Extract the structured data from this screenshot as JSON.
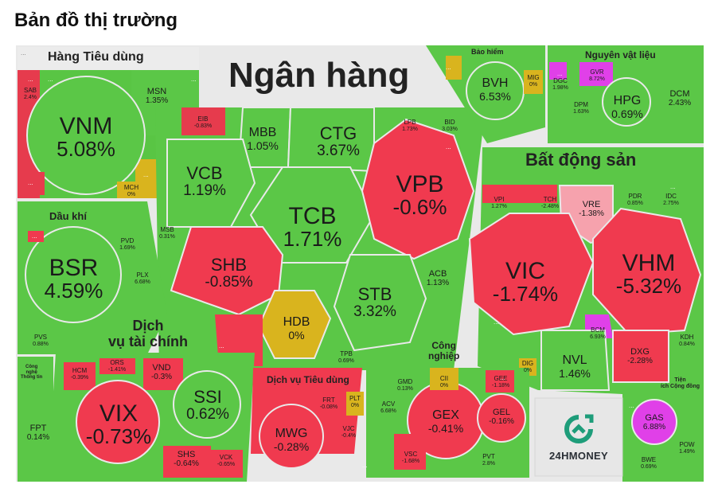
{
  "page": {
    "title": "Bản đồ thị trường"
  },
  "colors": {
    "green": "#5bc747",
    "red": "#f03a4f",
    "yellow": "#d9b41e",
    "magenta": "#e040e8",
    "pink": "#f6a2ad",
    "gray": "#e7e7e7"
  },
  "sectors": {
    "hang_tieu_dung": "Hàng Tiêu dùng",
    "ngan_hang": "Ngân hàng",
    "bao_hiem": "Bảo hiểm",
    "nguyen_vat_lieu": "Nguyên vật liệu",
    "bat_dong_san": "Bất động sản",
    "dau_khi": "Dầu khí",
    "dich_vu_tai_chinh": "Dịch\nvụ tài chính",
    "cong_nghe": "Công\nnghệ\nThông tin",
    "dich_vu_tieu_dung": "Dịch vụ Tiêu dùng",
    "cong_nghiep": "Công\nnghiệp",
    "tien_ich": "Tiện\ních Cộng đồng"
  },
  "tiles": {
    "vnm": {
      "code": "VNM",
      "pct": "5.08%"
    },
    "msn": {
      "code": "MSN",
      "pct": "1.35%"
    },
    "sab": {
      "code": "SAB",
      "pct": "2.4%"
    },
    "mch": {
      "code": "MCH",
      "pct": "0%"
    },
    "eib": {
      "code": "EIB",
      "pct": "-0.83%"
    },
    "mbb": {
      "code": "MBB",
      "pct": "1.05%"
    },
    "ctg": {
      "code": "CTG",
      "pct": "3.67%"
    },
    "lpb": {
      "code": "LPB",
      "pct": "1.73%"
    },
    "bid": {
      "code": "BID",
      "pct": "3.03%"
    },
    "vcb": {
      "code": "VCB",
      "pct": "1.19%"
    },
    "tcb": {
      "code": "TCB",
      "pct": "1.71%"
    },
    "vpb": {
      "code": "VPB",
      "pct": "-0.6%"
    },
    "shb": {
      "code": "SHB",
      "pct": "-0.85%"
    },
    "msb": {
      "code": "MSB",
      "pct": "0.31%"
    },
    "hdb": {
      "code": "HDB",
      "pct": "0%"
    },
    "stb": {
      "code": "STB",
      "pct": "3.32%"
    },
    "acb": {
      "code": "ACB",
      "pct": "1.13%"
    },
    "tpb": {
      "code": "TPB",
      "pct": "0.69%"
    },
    "bvh": {
      "code": "BVH",
      "pct": "6.53%"
    },
    "mig": {
      "code": "MIG",
      "pct": "0%"
    },
    "gvr": {
      "code": "GVR",
      "pct": "8.72%"
    },
    "dgc": {
      "code": "DGC",
      "pct": "1.98%"
    },
    "dpm": {
      "code": "DPM",
      "pct": "1.63%"
    },
    "hpg": {
      "code": "HPG",
      "pct": "0.69%"
    },
    "dcm": {
      "code": "DCM",
      "pct": "2.43%"
    },
    "vpi": {
      "code": "VPI",
      "pct": "1.27%"
    },
    "tch": {
      "code": "TCH",
      "pct": "-2.48%"
    },
    "vre": {
      "code": "VRE",
      "pct": "-1.38%"
    },
    "pdr": {
      "code": "PDR",
      "pct": "0.85%"
    },
    "idc": {
      "code": "IDC",
      "pct": "2.75%"
    },
    "vic": {
      "code": "VIC",
      "pct": "-1.74%"
    },
    "vhm": {
      "code": "VHM",
      "pct": "-5.32%"
    },
    "bcm": {
      "code": "BCM",
      "pct": "6.93%"
    },
    "nvl": {
      "code": "NVL",
      "pct": "1.46%"
    },
    "dxg": {
      "code": "DXG",
      "pct": "-2.28%"
    },
    "kdh": {
      "code": "KDH",
      "pct": "0.84%"
    },
    "dig": {
      "code": "DIG",
      "pct": "0%"
    },
    "bsr": {
      "code": "BSR",
      "pct": "4.59%"
    },
    "pvd": {
      "code": "PVD",
      "pct": "1.69%"
    },
    "plx": {
      "code": "PLX",
      "pct": "6.68%"
    },
    "pvs": {
      "code": "PVS",
      "pct": "0.88%"
    },
    "hcm": {
      "code": "HCM",
      "pct": "-0.39%"
    },
    "ors": {
      "code": "ORS",
      "pct": "-1.41%"
    },
    "vnd": {
      "code": "VND",
      "pct": "-0.3%"
    },
    "vix": {
      "code": "VIX",
      "pct": "-0.73%"
    },
    "ssi": {
      "code": "SSI",
      "pct": "0.62%"
    },
    "shs": {
      "code": "SHS",
      "pct": "-0.64%"
    },
    "vck": {
      "code": "VCK",
      "pct": "-0.65%"
    },
    "fpt": {
      "code": "FPT",
      "pct": "0.14%"
    },
    "frt": {
      "code": "FRT",
      "pct": "-0.08%"
    },
    "plt": {
      "code": "PLT",
      "pct": "0%"
    },
    "mwg": {
      "code": "MWG",
      "pct": "-0.28%"
    },
    "vjc": {
      "code": "VJC",
      "pct": "-0.4%"
    },
    "gmd": {
      "code": "GMD",
      "pct": "0.13%"
    },
    "cii": {
      "code": "CII",
      "pct": "0%"
    },
    "gee": {
      "code": "GEE",
      "pct": "-1.18%"
    },
    "acv": {
      "code": "ACV",
      "pct": "6.68%"
    },
    "gex": {
      "code": "GEX",
      "pct": "-0.41%"
    },
    "gel": {
      "code": "GEL",
      "pct": "-0.16%"
    },
    "vsc": {
      "code": "VSC",
      "pct": "-1.68%"
    },
    "pvt": {
      "code": "PVT",
      "pct": "2.8%"
    },
    "gas": {
      "code": "GAS",
      "pct": "6.88%"
    },
    "pow": {
      "code": "POW",
      "pct": "1.49%"
    },
    "bwe": {
      "code": "BWE",
      "pct": "0.69%"
    }
  },
  "placeholder": "...",
  "logo": {
    "text": "24HMONEY"
  }
}
